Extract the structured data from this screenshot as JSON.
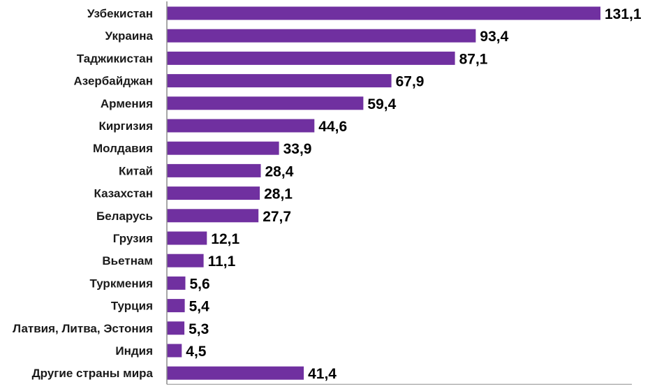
{
  "chart_data": {
    "type": "bar",
    "orientation": "horizontal",
    "categories": [
      "Узбекистан",
      "Украина",
      "Таджикистан",
      "Азербайджан",
      "Армения",
      "Киргизия",
      "Молдавия",
      "Китай",
      "Казахстан",
      "Беларусь",
      "Грузия",
      "Вьетнам",
      "Туркмения",
      "Турция",
      "Латвия, Литва, Эстония",
      "Индия",
      "Другие страны мира"
    ],
    "values": [
      131.1,
      93.4,
      87.1,
      67.9,
      59.4,
      44.6,
      33.9,
      28.4,
      28.1,
      27.7,
      12.1,
      11.1,
      5.6,
      5.4,
      5.3,
      4.5,
      41.4
    ],
    "value_labels": [
      "131,1",
      "93,4",
      "87,1",
      "67,9",
      "59,4",
      "44,6",
      "33,9",
      "28,4",
      "28,1",
      "27,7",
      "12,1",
      "11,1",
      "5,6",
      "5,4",
      "5,3",
      "4,5",
      "41,4"
    ],
    "title": "",
    "xlabel": "",
    "ylabel": "",
    "xlim": [
      0,
      131.1
    ],
    "grid": false,
    "legend": "none",
    "bar_color": "#7030a0",
    "axis_color": "#8c8c8c"
  }
}
